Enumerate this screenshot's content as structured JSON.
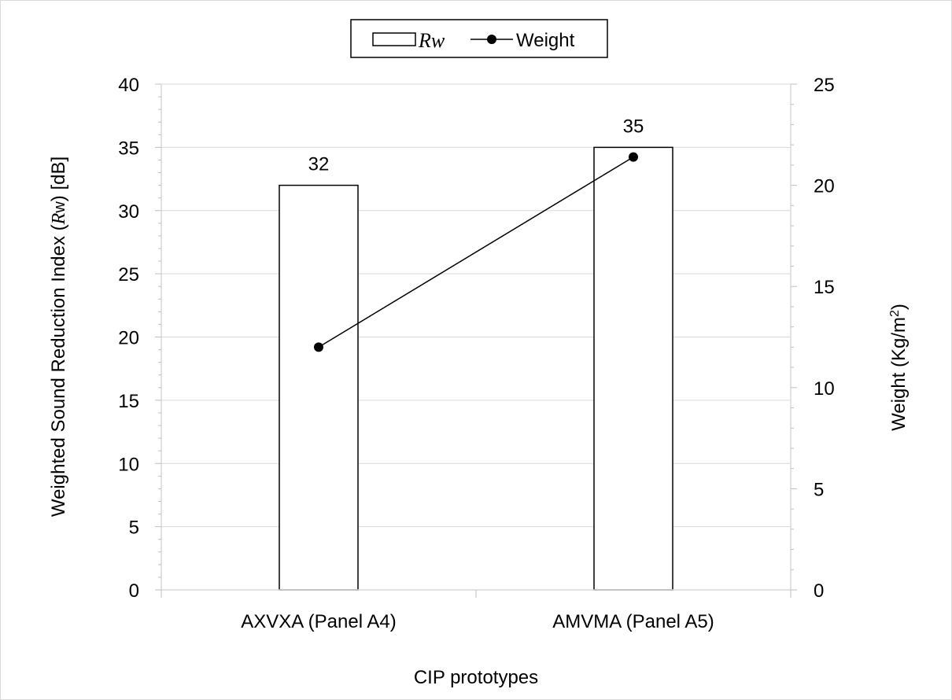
{
  "chart_data": {
    "type": "bar",
    "categories": [
      "AXVXA (Panel  A4)",
      "AMVMA (Panel  A5)"
    ],
    "series": [
      {
        "name": "Rw",
        "type": "bar",
        "axis": "left",
        "values": [
          32,
          35
        ],
        "data_labels": [
          "32",
          "35"
        ],
        "fill": "#ffffff",
        "stroke": "#000000"
      },
      {
        "name": "Weight",
        "type": "line",
        "axis": "right",
        "values": [
          12.0,
          21.4
        ],
        "color": "#000000",
        "marker": "circle"
      }
    ],
    "xlabel": "CIP prototypes",
    "ylabel": {
      "before": "Weighted Sound Reduction Index (",
      "italic": "R",
      "sub": "w",
      "after": ") [dB]"
    },
    "y2label": {
      "before": "Weight (Kg/m",
      "sup": "2",
      "after": ")"
    },
    "ylim": [
      0,
      40
    ],
    "y_ticks": [
      "0",
      "5",
      "10",
      "15",
      "20",
      "25",
      "30",
      "35",
      "40"
    ],
    "y2lim": [
      0,
      25
    ],
    "y2_ticks": [
      "0",
      "5",
      "10",
      "15",
      "20",
      "25"
    ],
    "legend": {
      "position": "top",
      "bar_label": "Rw",
      "line_label": "Weight"
    },
    "grid": true,
    "grid_color": "#d9d9d9"
  }
}
